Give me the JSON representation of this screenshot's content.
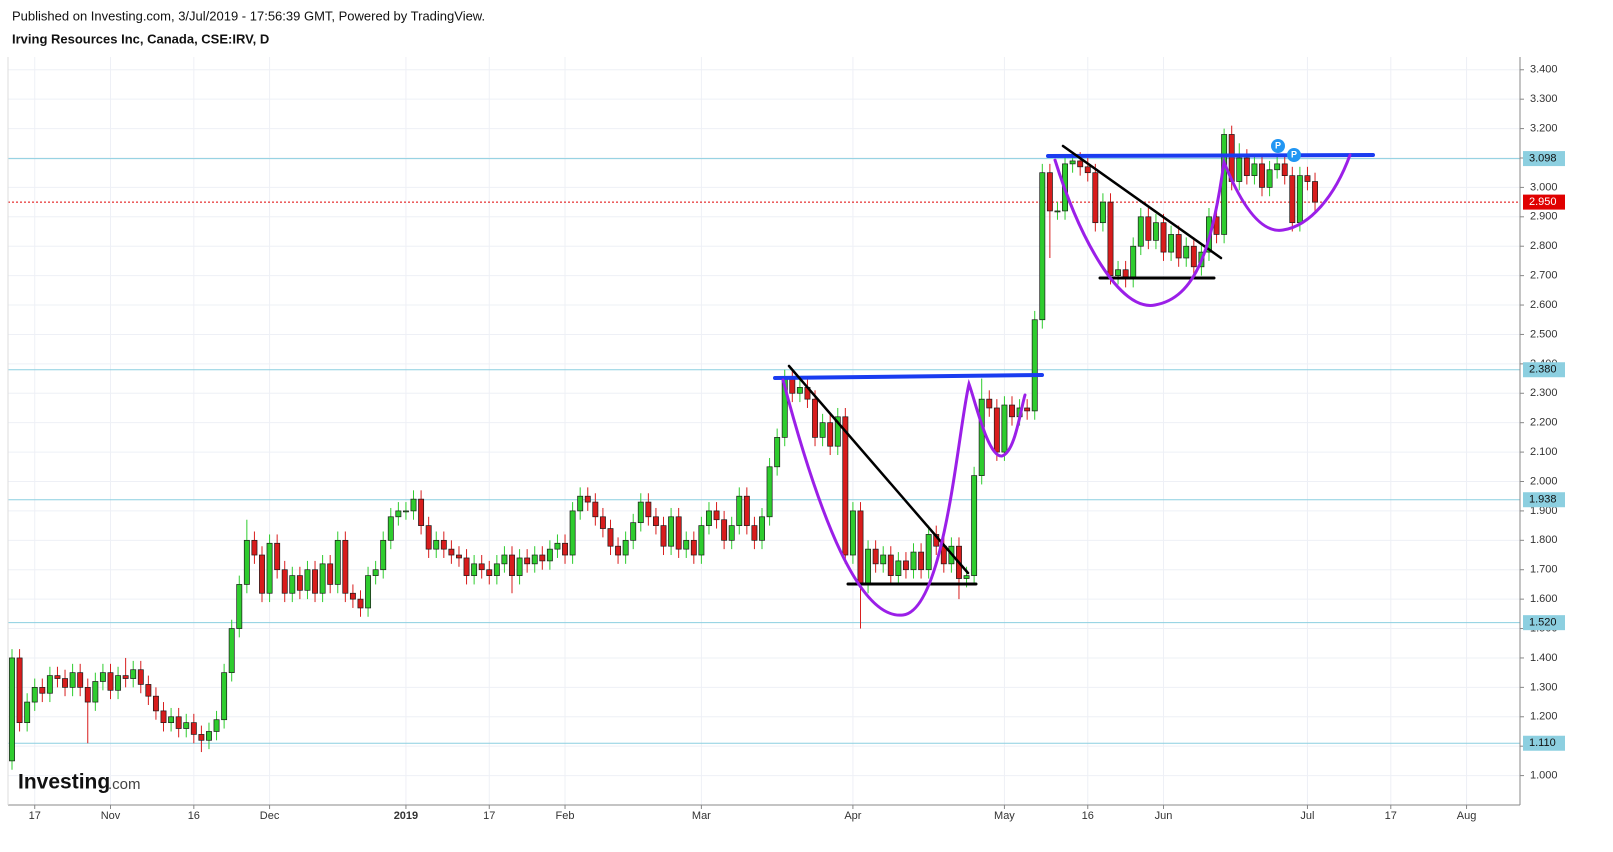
{
  "chart_data": {
    "type": "candlestick",
    "source": "Published on Investing.com, 3/Jul/2019 - 17:56:39 GMT, Powered by TradingView.",
    "title": "Irving Resources Inc, Canada, CSE:IRV, D",
    "watermark": {
      "brand": "Investing",
      "suffix": ".com"
    },
    "event_markers": [
      "P",
      "P"
    ],
    "up_color": "#2ecc2e",
    "down_color": "#d81c1c",
    "grid": true,
    "ylim": [
      0.9,
      3.44
    ],
    "yticks": [
      {
        "value": 1.0,
        "label": "1.000"
      },
      {
        "value": 1.1,
        "label": "1.100"
      },
      {
        "value": 1.2,
        "label": "1.200"
      },
      {
        "value": 1.3,
        "label": "1.300"
      },
      {
        "value": 1.4,
        "label": "1.400"
      },
      {
        "value": 1.5,
        "label": "1.500"
      },
      {
        "value": 1.6,
        "label": "1.600"
      },
      {
        "value": 1.7,
        "label": "1.700"
      },
      {
        "value": 1.8,
        "label": "1.800"
      },
      {
        "value": 1.9,
        "label": "1.900"
      },
      {
        "value": 2.0,
        "label": "2.000"
      },
      {
        "value": 2.1,
        "label": "2.100"
      },
      {
        "value": 2.2,
        "label": "2.200"
      },
      {
        "value": 2.3,
        "label": "2.300"
      },
      {
        "value": 2.4,
        "label": "2.400"
      },
      {
        "value": 2.5,
        "label": "2.500"
      },
      {
        "value": 2.6,
        "label": "2.600"
      },
      {
        "value": 2.7,
        "label": "2.700"
      },
      {
        "value": 2.8,
        "label": "2.800"
      },
      {
        "value": 2.9,
        "label": "2.900"
      },
      {
        "value": 3.0,
        "label": "3.000"
      },
      {
        "value": 3.1,
        "label": "3.100"
      },
      {
        "value": 3.2,
        "label": "3.200"
      },
      {
        "value": 3.3,
        "label": "3.300"
      },
      {
        "value": 3.4,
        "label": "3.400"
      }
    ],
    "levels": [
      3.098,
      {
        "value": 2.38,
        "label": "2.380"
      },
      1.938,
      {
        "value": 1.52,
        "label": "1.520"
      },
      {
        "value": 1.11,
        "label": "1.110"
      }
    ],
    "level_color": "#8ccfe0",
    "last_price": {
      "value": 2.95,
      "label": "2.950"
    },
    "last_price_color": "#e00000",
    "categories": [
      null,
      null,
      null,
      "17",
      null,
      null,
      null,
      null,
      null,
      null,
      null,
      null,
      null,
      "Nov",
      null,
      null,
      null,
      null,
      null,
      null,
      null,
      null,
      null,
      null,
      "16",
      null,
      null,
      null,
      null,
      null,
      null,
      null,
      null,
      null,
      "Dec",
      null,
      null,
      null,
      null,
      null,
      null,
      null,
      null,
      null,
      null,
      null,
      null,
      null,
      null,
      null,
      null,
      null,
      "2019",
      null,
      null,
      null,
      null,
      null,
      null,
      null,
      null,
      null,
      null,
      "17",
      null,
      null,
      null,
      null,
      null,
      null,
      null,
      null,
      null,
      "Feb",
      null,
      null,
      null,
      null,
      null,
      null,
      null,
      null,
      null,
      null,
      null,
      null,
      null,
      null,
      null,
      null,
      null,
      "Mar",
      null,
      null,
      null,
      null,
      null,
      null,
      null,
      null,
      null,
      null,
      null,
      null,
      null,
      null,
      null,
      null,
      null,
      null,
      null,
      "Apr",
      null,
      null,
      null,
      null,
      null,
      null,
      null,
      null,
      null,
      null,
      null,
      null,
      null,
      null,
      null,
      null,
      null,
      null,
      null,
      "May",
      null,
      null,
      null,
      null,
      null,
      null,
      null,
      null,
      null,
      null,
      "16",
      null,
      null,
      null,
      null,
      null,
      null,
      null,
      null,
      null,
      "Jun",
      null,
      null,
      null,
      null,
      null,
      null,
      null,
      null,
      null,
      null,
      null,
      null,
      null,
      null,
      null,
      null,
      null,
      null,
      "Jul",
      null,
      null,
      null,
      null,
      null,
      null,
      null,
      null,
      null,
      null,
      "17",
      null,
      null,
      null,
      null,
      null,
      null,
      null,
      null,
      null,
      "Aug",
      null,
      null,
      null,
      null,
      null,
      null
    ],
    "open": [
      1.05,
      1.4,
      1.18,
      1.25,
      1.3,
      1.28,
      1.34,
      1.33,
      1.3,
      1.35,
      1.3,
      1.25,
      1.32,
      1.35,
      1.29,
      1.34,
      1.33,
      1.36,
      1.31,
      1.27,
      1.22,
      1.18,
      1.2,
      1.16,
      1.18,
      1.14,
      1.12,
      1.15,
      1.19,
      1.35,
      1.5,
      1.65,
      1.8,
      1.75,
      1.62,
      1.79,
      1.7,
      1.62,
      1.68,
      1.63,
      1.7,
      1.62,
      1.72,
      1.65,
      1.8,
      1.62,
      1.6,
      1.57,
      1.68,
      1.7,
      1.8,
      1.88,
      1.9,
      1.9,
      1.94,
      1.85,
      1.77,
      1.8,
      1.77,
      1.75,
      1.74,
      1.68,
      1.72,
      1.7,
      1.68,
      1.72,
      1.75,
      1.68,
      1.74,
      1.72,
      1.75,
      1.73,
      1.77,
      1.79,
      1.75,
      1.9,
      1.95,
      1.93,
      1.88,
      1.84,
      1.78,
      1.75,
      1.8,
      1.86,
      1.93,
      1.88,
      1.85,
      1.78,
      1.88,
      1.77,
      1.8,
      1.75,
      1.85,
      1.9,
      1.87,
      1.8,
      1.85,
      1.95,
      1.85,
      1.8,
      1.88,
      2.05,
      2.15,
      2.35,
      2.3,
      2.32,
      2.28,
      2.15,
      2.2,
      2.12,
      2.22,
      1.75,
      1.9,
      1.65,
      1.77,
      1.72,
      1.75,
      1.68,
      1.73,
      1.7,
      1.76,
      1.7,
      1.82,
      1.78,
      1.72,
      1.78,
      1.67,
      1.68,
      2.02,
      2.28,
      2.25,
      2.1,
      2.26,
      2.22,
      2.25,
      2.24,
      2.55,
      3.05,
      2.92,
      2.92,
      3.08,
      3.09,
      3.07,
      3.05,
      2.88,
      2.95,
      2.7,
      2.72,
      2.69,
      2.8,
      2.9,
      2.82,
      2.88,
      2.78,
      2.84,
      2.76,
      2.8,
      2.73,
      2.78,
      2.9,
      2.84,
      3.18,
      3.02,
      3.1,
      3.04,
      3.08,
      3.0,
      3.06,
      3.08,
      3.04,
      2.88,
      3.04,
      3.02,
      null,
      null,
      null,
      null,
      null,
      null,
      null,
      null,
      null,
      null,
      null,
      null,
      null,
      null,
      null,
      null,
      null,
      null,
      null,
      null,
      null,
      null,
      null,
      null,
      null,
      null
    ],
    "high": [
      1.43,
      1.43,
      1.28,
      1.33,
      1.33,
      1.37,
      1.37,
      1.36,
      1.38,
      1.38,
      1.33,
      1.35,
      1.38,
      1.38,
      1.37,
      1.4,
      1.39,
      1.39,
      1.34,
      1.3,
      1.25,
      1.23,
      1.23,
      1.21,
      1.21,
      1.17,
      1.18,
      1.22,
      1.38,
      1.53,
      1.68,
      1.87,
      1.83,
      1.78,
      1.82,
      1.82,
      1.73,
      1.71,
      1.71,
      1.73,
      1.73,
      1.75,
      1.75,
      1.83,
      1.83,
      1.65,
      1.63,
      1.71,
      1.73,
      1.83,
      1.91,
      1.93,
      1.93,
      1.97,
      1.97,
      1.88,
      1.83,
      1.83,
      1.8,
      1.78,
      1.77,
      1.75,
      1.75,
      1.73,
      1.75,
      1.78,
      1.78,
      1.77,
      1.77,
      1.78,
      1.78,
      1.8,
      1.82,
      1.82,
      1.93,
      1.98,
      1.98,
      1.96,
      1.91,
      1.87,
      1.81,
      1.83,
      1.89,
      1.96,
      1.96,
      1.91,
      1.88,
      1.91,
      1.91,
      1.83,
      1.83,
      1.88,
      1.93,
      1.93,
      1.9,
      1.88,
      1.98,
      1.98,
      1.88,
      1.91,
      2.08,
      2.18,
      2.38,
      2.38,
      2.35,
      2.35,
      2.31,
      2.23,
      2.23,
      2.25,
      2.25,
      1.93,
      1.93,
      1.8,
      1.8,
      1.78,
      1.78,
      1.76,
      1.76,
      1.79,
      1.79,
      1.85,
      1.85,
      1.81,
      1.81,
      1.81,
      1.71,
      2.05,
      2.35,
      2.31,
      2.28,
      2.29,
      2.29,
      2.28,
      2.28,
      2.58,
      3.08,
      3.08,
      2.95,
      3.11,
      3.12,
      3.12,
      3.1,
      3.08,
      2.98,
      2.98,
      2.75,
      2.75,
      2.83,
      2.93,
      2.93,
      2.91,
      2.91,
      2.87,
      2.87,
      2.83,
      2.83,
      2.81,
      2.93,
      2.93,
      3.2,
      3.21,
      3.15,
      3.13,
      3.11,
      3.11,
      3.09,
      3.11,
      3.11,
      3.07,
      3.07,
      3.07,
      3.05,
      null,
      null,
      null,
      null,
      null,
      null,
      null,
      null,
      null,
      null,
      null,
      null,
      null,
      null,
      null,
      null,
      null,
      null,
      null,
      null,
      null,
      null,
      null,
      null,
      null,
      null
    ],
    "low": [
      1.02,
      1.15,
      1.15,
      1.22,
      1.25,
      1.25,
      1.3,
      1.27,
      1.27,
      1.27,
      1.11,
      1.22,
      1.29,
      1.26,
      1.26,
      1.3,
      1.3,
      1.28,
      1.24,
      1.19,
      1.15,
      1.15,
      1.13,
      1.13,
      1.11,
      1.08,
      1.09,
      1.12,
      1.16,
      1.32,
      1.47,
      1.62,
      1.72,
      1.59,
      1.59,
      1.67,
      1.59,
      1.59,
      1.6,
      1.6,
      1.59,
      1.59,
      1.62,
      1.62,
      1.59,
      1.57,
      1.54,
      1.54,
      1.65,
      1.67,
      1.77,
      1.85,
      1.87,
      1.87,
      1.82,
      1.74,
      1.74,
      1.74,
      1.72,
      1.71,
      1.65,
      1.65,
      1.67,
      1.65,
      1.65,
      1.69,
      1.62,
      1.65,
      1.69,
      1.69,
      1.7,
      1.7,
      1.74,
      1.72,
      1.72,
      1.87,
      1.9,
      1.85,
      1.81,
      1.75,
      1.72,
      1.72,
      1.77,
      1.83,
      1.85,
      1.82,
      1.75,
      1.75,
      1.74,
      1.74,
      1.72,
      1.72,
      1.82,
      1.84,
      1.77,
      1.77,
      1.82,
      1.82,
      1.77,
      1.77,
      1.85,
      2.02,
      2.12,
      2.27,
      2.27,
      2.25,
      2.12,
      2.12,
      2.09,
      2.09,
      1.72,
      1.72,
      1.5,
      1.62,
      1.69,
      1.69,
      1.65,
      1.65,
      1.67,
      1.67,
      1.67,
      1.67,
      1.75,
      1.69,
      1.69,
      1.6,
      1.64,
      1.65,
      1.99,
      2.22,
      2.07,
      2.07,
      2.19,
      2.19,
      2.21,
      2.21,
      2.52,
      2.76,
      2.89,
      2.89,
      3.05,
      3.04,
      3.02,
      2.85,
      2.85,
      2.67,
      2.67,
      2.66,
      2.66,
      2.77,
      2.79,
      2.79,
      2.75,
      2.75,
      2.73,
      2.73,
      2.7,
      2.7,
      2.75,
      2.81,
      2.81,
      2.99,
      2.99,
      3.01,
      3.01,
      2.97,
      2.97,
      3.03,
      3.01,
      2.85,
      2.85,
      2.99,
      2.92,
      null,
      null,
      null,
      null,
      null,
      null,
      null,
      null,
      null,
      null,
      null,
      null,
      null,
      null,
      null,
      null,
      null,
      null,
      null,
      null,
      null,
      null,
      null,
      null,
      null,
      null
    ],
    "close": [
      1.4,
      1.18,
      1.25,
      1.3,
      1.28,
      1.34,
      1.33,
      1.3,
      1.35,
      1.3,
      1.25,
      1.32,
      1.35,
      1.29,
      1.34,
      1.33,
      1.36,
      1.31,
      1.27,
      1.22,
      1.18,
      1.2,
      1.16,
      1.18,
      1.14,
      1.12,
      1.15,
      1.19,
      1.35,
      1.5,
      1.65,
      1.8,
      1.75,
      1.62,
      1.79,
      1.7,
      1.62,
      1.68,
      1.63,
      1.7,
      1.62,
      1.72,
      1.65,
      1.8,
      1.62,
      1.6,
      1.57,
      1.68,
      1.7,
      1.8,
      1.88,
      1.9,
      1.9,
      1.94,
      1.85,
      1.77,
      1.8,
      1.77,
      1.75,
      1.74,
      1.68,
      1.72,
      1.7,
      1.68,
      1.72,
      1.75,
      1.68,
      1.74,
      1.72,
      1.75,
      1.73,
      1.77,
      1.79,
      1.75,
      1.9,
      1.95,
      1.93,
      1.88,
      1.84,
      1.78,
      1.75,
      1.8,
      1.86,
      1.93,
      1.88,
      1.85,
      1.78,
      1.88,
      1.77,
      1.8,
      1.75,
      1.85,
      1.9,
      1.87,
      1.8,
      1.85,
      1.95,
      1.85,
      1.8,
      1.88,
      2.05,
      2.15,
      2.35,
      2.3,
      2.32,
      2.28,
      2.15,
      2.2,
      2.12,
      2.22,
      1.75,
      1.9,
      1.65,
      1.77,
      1.72,
      1.75,
      1.68,
      1.73,
      1.7,
      1.76,
      1.7,
      1.82,
      1.78,
      1.72,
      1.78,
      1.67,
      1.68,
      2.02,
      2.28,
      2.25,
      2.1,
      2.26,
      2.22,
      2.25,
      2.24,
      2.55,
      3.05,
      2.92,
      2.92,
      3.08,
      3.09,
      3.07,
      3.05,
      2.88,
      2.95,
      2.7,
      2.72,
      2.69,
      2.8,
      2.9,
      2.82,
      2.88,
      2.78,
      2.84,
      2.76,
      2.8,
      2.73,
      2.78,
      2.9,
      2.84,
      3.18,
      3.02,
      3.1,
      3.04,
      3.08,
      3.0,
      3.06,
      3.08,
      3.04,
      2.88,
      3.04,
      3.02,
      2.95,
      null,
      null,
      null,
      null,
      null,
      null,
      null,
      null,
      null,
      null,
      null,
      null,
      null,
      null,
      null,
      null,
      null,
      null,
      null,
      null,
      null,
      null,
      null,
      null,
      null,
      null
    ]
  }
}
